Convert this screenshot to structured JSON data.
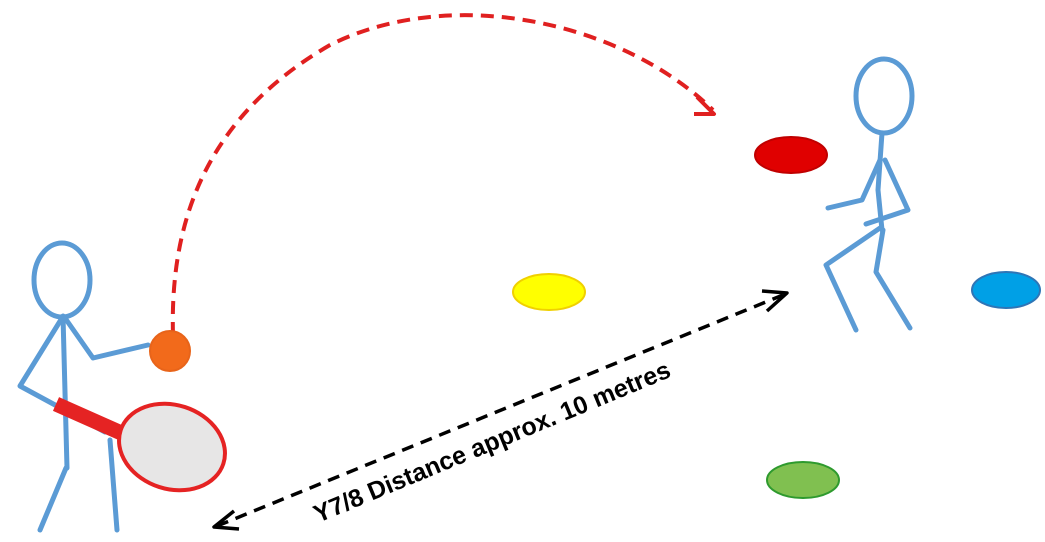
{
  "diagram": {
    "distance_label": "Y7/8 Distance approx. 10 metres",
    "colors": {
      "figure": "#5b9bd5",
      "trajectory": "#e02020",
      "ball": "#f26a1b",
      "racket_handle": "#e52323",
      "racket_head_fill": "#e7e6e6",
      "racket_head_stroke": "#e52323",
      "cone_red": "#e00000",
      "cone_yellow": "#ffff00",
      "cone_blue": "#00a0e6",
      "cone_green": "#80c050",
      "distance_arrow": "#000000"
    },
    "elements": {
      "server": "stick-figure-with-racket",
      "receiver": "stick-figure-crouching",
      "ball": "ball",
      "cones": [
        "red",
        "yellow",
        "blue",
        "green"
      ]
    }
  }
}
